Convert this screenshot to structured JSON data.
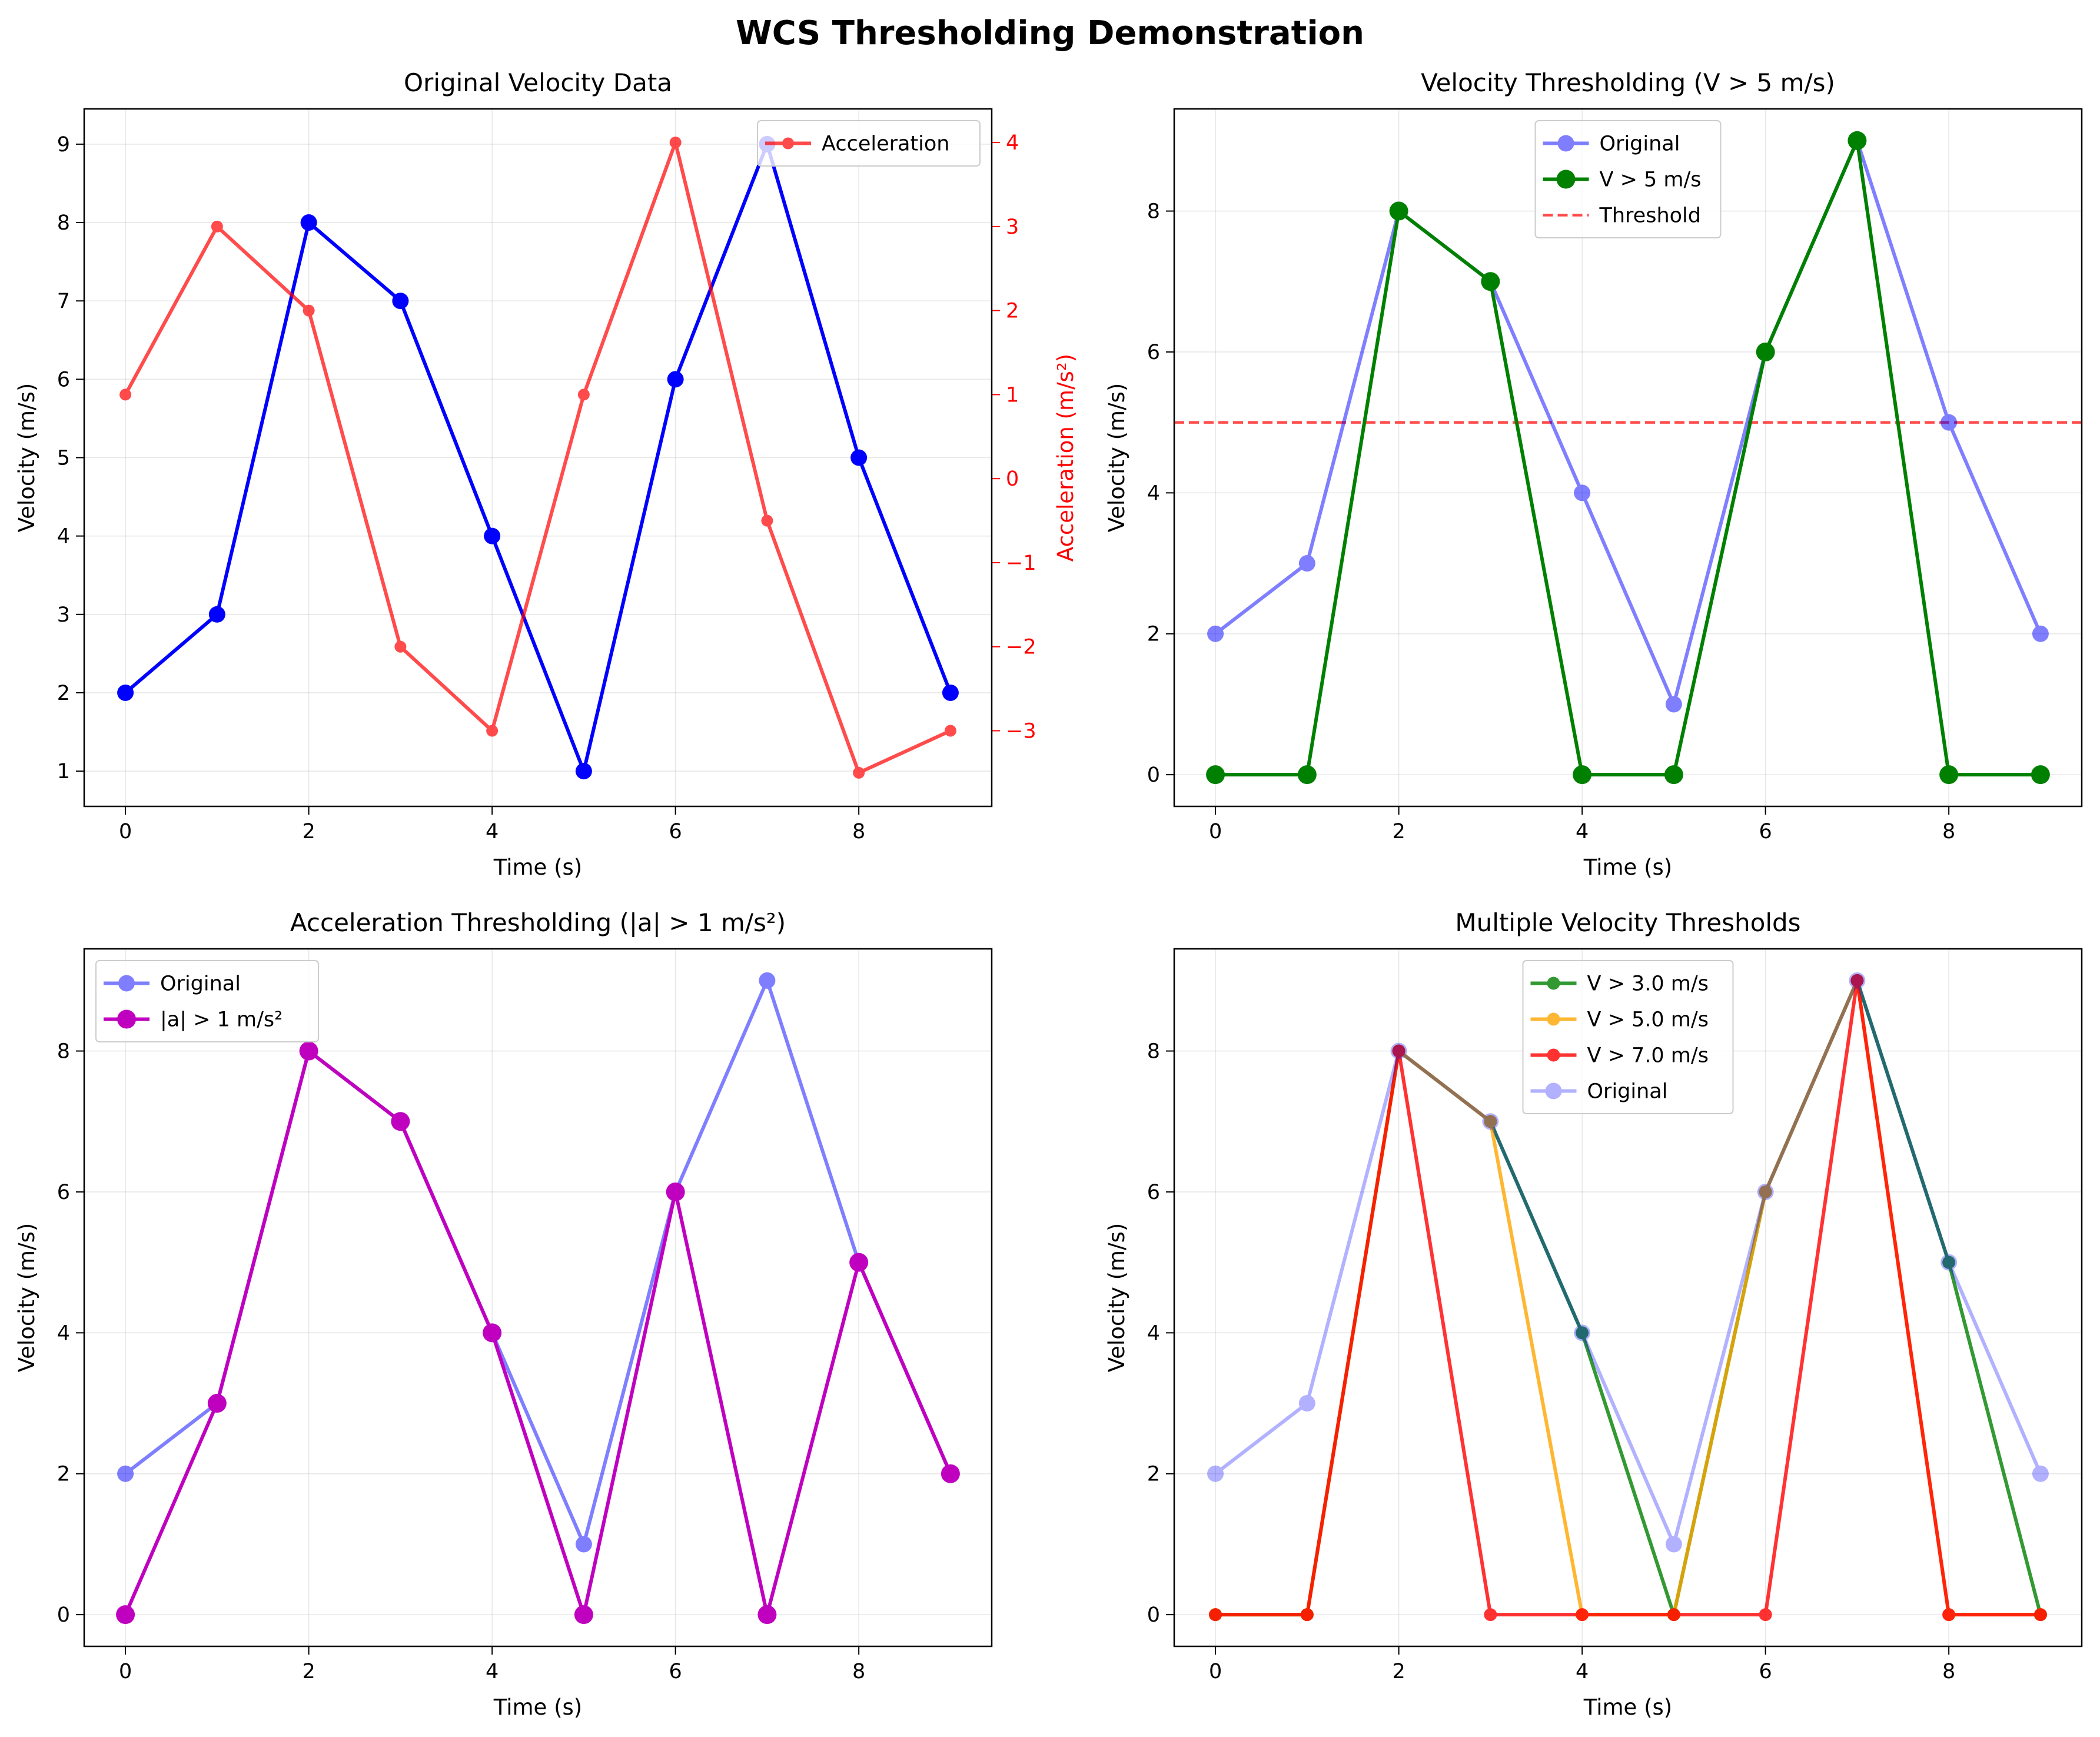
{
  "figure": {
    "title": "WCS Thresholding Demonstration"
  },
  "chart_data": [
    {
      "type": "line",
      "title": "Original Velocity Data",
      "xlabel": "Time (s)",
      "ylabel": "Velocity (m/s)",
      "y2label": "Acceleration (m/s²)",
      "xlim": [
        -0.45,
        9.45
      ],
      "ylim": [
        0.55,
        9.45
      ],
      "y2lim": [
        -3.9,
        4.4
      ],
      "xticks": [
        0,
        2,
        4,
        6,
        8
      ],
      "yticks": [
        1,
        2,
        3,
        4,
        5,
        6,
        7,
        8,
        9
      ],
      "y2ticks": [
        -3,
        -2,
        -1,
        0,
        1,
        2,
        3,
        4
      ],
      "grid": true,
      "legend": "top-right",
      "x": [
        0,
        1,
        2,
        3,
        4,
        5,
        6,
        7,
        8,
        9
      ],
      "series": [
        {
          "values": [
            2,
            3,
            8,
            7,
            4,
            1,
            6,
            9,
            5,
            2
          ],
          "color": "#0000ff",
          "axis": "left",
          "width": 6,
          "marker": 14,
          "alpha": 1
        },
        {
          "name": "Acceleration",
          "values": [
            1,
            3,
            2,
            -2,
            -3,
            1,
            4,
            -0.5,
            -3.5,
            -3
          ],
          "color": "#ff0000",
          "axis": "right",
          "width": 6,
          "marker": 10,
          "alpha": 0.7
        }
      ]
    },
    {
      "type": "line",
      "title": "Velocity Thresholding (V > 5 m/s)",
      "xlabel": "Time (s)",
      "ylabel": "Velocity (m/s)",
      "xlim": [
        -0.45,
        9.45
      ],
      "ylim": [
        -0.45,
        9.45
      ],
      "xticks": [
        0,
        2,
        4,
        6,
        8
      ],
      "yticks": [
        0,
        2,
        4,
        6,
        8
      ],
      "grid": true,
      "legend": "top-center",
      "x": [
        0,
        1,
        2,
        3,
        4,
        5,
        6,
        7,
        8,
        9
      ],
      "threshold": {
        "name": "Threshold",
        "value": 5,
        "color": "#ff0000"
      },
      "series": [
        {
          "name": "Original",
          "values": [
            2,
            3,
            8,
            7,
            4,
            1,
            6,
            9,
            5,
            2
          ],
          "color": "#0000ff",
          "width": 6,
          "marker": 14,
          "alpha": 0.5
        },
        {
          "name": "V > 5 m/s",
          "values": [
            0,
            0,
            8,
            7,
            0,
            0,
            6,
            9,
            0,
            0
          ],
          "color": "#008000",
          "width": 6,
          "marker": 16,
          "alpha": 1
        }
      ]
    },
    {
      "type": "line",
      "title": "Acceleration Thresholding (|a| > 1 m/s²)",
      "xlabel": "Time (s)",
      "ylabel": "Velocity (m/s)",
      "xlim": [
        -0.45,
        9.45
      ],
      "ylim": [
        -0.45,
        9.45
      ],
      "xticks": [
        0,
        2,
        4,
        6,
        8
      ],
      "yticks": [
        0,
        2,
        4,
        6,
        8
      ],
      "grid": true,
      "legend": "top-left",
      "x": [
        0,
        1,
        2,
        3,
        4,
        5,
        6,
        7,
        8,
        9
      ],
      "series": [
        {
          "name": "Original",
          "values": [
            2,
            3,
            8,
            7,
            4,
            1,
            6,
            9,
            5,
            2
          ],
          "color": "#0000ff",
          "width": 6,
          "marker": 14,
          "alpha": 0.5
        },
        {
          "name": "|a| > 1 m/s²",
          "values": [
            0,
            3,
            8,
            7,
            4,
            0,
            6,
            0,
            5,
            2
          ],
          "color": "#bf00bf",
          "width": 6,
          "marker": 16,
          "alpha": 1
        }
      ]
    },
    {
      "type": "line",
      "title": "Multiple Velocity Thresholds",
      "xlabel": "Time (s)",
      "ylabel": "Velocity (m/s)",
      "xlim": [
        -0.45,
        9.45
      ],
      "ylim": [
        -0.45,
        9.45
      ],
      "xticks": [
        0,
        2,
        4,
        6,
        8
      ],
      "yticks": [
        0,
        2,
        4,
        6,
        8
      ],
      "grid": true,
      "legend": "top-center",
      "x": [
        0,
        1,
        2,
        3,
        4,
        5,
        6,
        7,
        8,
        9
      ],
      "series": [
        {
          "name": "V > 3.0 m/s",
          "values": [
            0,
            0,
            8,
            7,
            4,
            0,
            6,
            9,
            5,
            0
          ],
          "color": "#008000",
          "width": 6,
          "marker": 11,
          "alpha": 0.8
        },
        {
          "name": "V > 5.0 m/s",
          "values": [
            0,
            0,
            8,
            7,
            0,
            0,
            6,
            9,
            0,
            0
          ],
          "color": "#ffa500",
          "width": 6,
          "marker": 11,
          "alpha": 0.8
        },
        {
          "name": "V > 7.0 m/s",
          "values": [
            0,
            0,
            8,
            0,
            0,
            0,
            0,
            9,
            0,
            0
          ],
          "color": "#ff0000",
          "width": 6,
          "marker": 11,
          "alpha": 0.8
        },
        {
          "name": "Original",
          "values": [
            2,
            3,
            8,
            7,
            4,
            1,
            6,
            9,
            5,
            2
          ],
          "color": "#0000ff",
          "width": 6,
          "marker": 14,
          "alpha": 0.3
        }
      ]
    }
  ]
}
